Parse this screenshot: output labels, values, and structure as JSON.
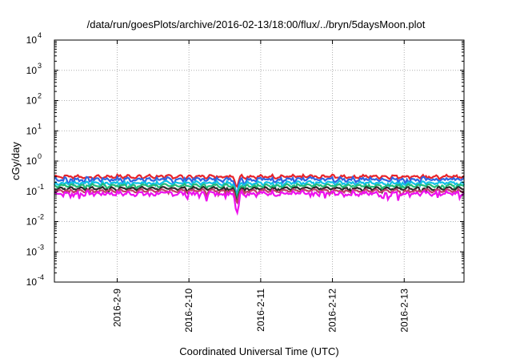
{
  "chart_data": {
    "type": "line",
    "title": "/data/run/goesPlots/archive/2016-02-13/18:00/flux/../bryn/5daysMoon.plot",
    "xlabel": "Coordinated Universal Time (UTC)",
    "ylabel": "cGy/day",
    "yscale": "log",
    "ylim": [
      0.0001,
      10000
    ],
    "y_ticks": [
      {
        "base": "10",
        "exp": "-4",
        "value": 0.0001
      },
      {
        "base": "10",
        "exp": "-3",
        "value": 0.001
      },
      {
        "base": "10",
        "exp": "-2",
        "value": 0.01
      },
      {
        "base": "10",
        "exp": "-1",
        "value": 0.1
      },
      {
        "base": "10",
        "exp": "0",
        "value": 1
      },
      {
        "base": "10",
        "exp": "1",
        "value": 10
      },
      {
        "base": "10",
        "exp": "2",
        "value": 100
      },
      {
        "base": "10",
        "exp": "3",
        "value": 1000
      },
      {
        "base": "10",
        "exp": "4",
        "value": 10000
      }
    ],
    "xlim": [
      "2016-02-08T03:00",
      "2016-02-13T20:00"
    ],
    "x_ticks": [
      {
        "label": "2016-2-9",
        "value": "2016-02-09T00:00"
      },
      {
        "label": "2016-2-10",
        "value": "2016-02-10T00:00"
      },
      {
        "label": "2016-2-11",
        "value": "2016-02-11T00:00"
      },
      {
        "label": "2016-2-12",
        "value": "2016-02-12T00:00"
      },
      {
        "label": "2016-2-13",
        "value": "2016-02-13T00:00"
      }
    ],
    "grid": true,
    "legend": "none",
    "series": [
      {
        "color": "#e8232a",
        "level": 0.31,
        "amplitude": 0.1,
        "dip_at": "2016-02-10T16:00",
        "dip_to": 0.12
      },
      {
        "color": "#2f64e0",
        "level": 0.25,
        "amplitude": 0.14,
        "dip_at": "2016-02-10T16:00",
        "dip_to": 0.06
      },
      {
        "color": "#10c0e6",
        "level": 0.19,
        "amplitude": 0.1,
        "dip_at": "2016-02-10T16:00",
        "dip_to": 0.06
      },
      {
        "color": "#22bb77",
        "level": 0.155,
        "amplitude": 0.07,
        "dip_at": "2016-02-10T16:00",
        "dip_to": 0.05
      },
      {
        "color": "#2a2a2a",
        "level": 0.125,
        "amplitude": 0.06,
        "dip_at": "2016-02-10T16:00",
        "dip_to": 0.04
      },
      {
        "color": "#c43d6a",
        "level": 0.105,
        "amplitude": 0.06,
        "dip_at": "2016-02-10T16:00",
        "dip_to": 0.035
      },
      {
        "color": "#ee11ee",
        "level": 0.085,
        "amplitude": 0.15,
        "dip_at": "2016-02-10T16:00",
        "dip_to": 0.011
      }
    ]
  }
}
